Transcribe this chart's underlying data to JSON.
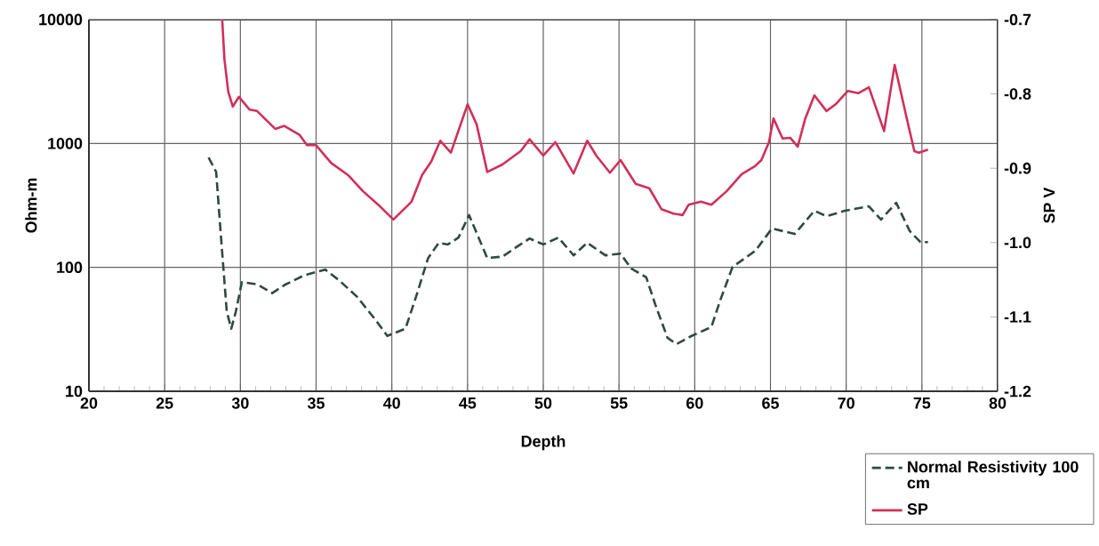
{
  "chart_data": {
    "type": "line",
    "xlabel": "Depth",
    "ylabel": "Ohm-m",
    "y2label": "SP  V",
    "xlim": [
      20,
      80
    ],
    "xticks": [
      20,
      25,
      30,
      35,
      40,
      45,
      50,
      55,
      60,
      65,
      70,
      75,
      80
    ],
    "ylim": [
      10,
      10000
    ],
    "yticks": [
      10,
      100,
      1000,
      10000
    ],
    "log": "y",
    "y2lim": [
      -1.2,
      -0.7
    ],
    "y2ticks": [
      {
        "value": -0.7,
        "label": "-0.7"
      },
      {
        "value": -0.8,
        "label": "-0.8"
      },
      {
        "value": -0.9,
        "label": "-0.9"
      },
      {
        "value": -1.0,
        "label": "-1.0"
      },
      {
        "value": -1.1,
        "label": "-1.1"
      },
      {
        "value": -1.2,
        "label": "-1.2"
      }
    ],
    "grid": true,
    "legend": "bottom right",
    "series": [
      {
        "name": "Normal Resistivity 100 cm",
        "color": "#2f4a3e",
        "line_style": "dashed",
        "x": [
          27.9,
          28.4,
          28.7,
          29.1,
          29.4,
          29.7,
          30.1,
          31.1,
          32.1,
          33.0,
          34.2,
          35.6,
          36.5,
          37.7,
          38.9,
          39.7,
          40.9,
          41.6,
          42.4,
          43.1,
          43.7,
          44.4,
          45.1,
          46.3,
          47.3,
          48.2,
          49.1,
          50.0,
          51.0,
          52.0,
          52.9,
          54.1,
          55.1,
          55.8,
          56.8,
          57.4,
          58.2,
          58.8,
          59.8,
          61.1,
          61.7,
          62.5,
          64.0,
          65.1,
          66.6,
          67.9,
          68.7,
          69.9,
          71.5,
          72.3,
          73.3,
          74.2,
          74.9,
          75.4
        ],
        "values": [
          770,
          590,
          190,
          44,
          32,
          44,
          76,
          73,
          62,
          73,
          86,
          96,
          79,
          58,
          38,
          28,
          32,
          58,
          119,
          158,
          153,
          174,
          264,
          119,
          122,
          145,
          171,
          153,
          174,
          125,
          158,
          125,
          129,
          98,
          83,
          50,
          27,
          24,
          28,
          33,
          55,
          101,
          136,
          206,
          186,
          286,
          259,
          286,
          311,
          243,
          332,
          196,
          160,
          160
        ]
      },
      {
        "name": "SP",
        "axis": "y2",
        "color": "#d0305a",
        "line_style": "solid",
        "x": [
          28.8,
          28.95,
          29.2,
          29.5,
          29.9,
          30.6,
          31.1,
          32.3,
          32.9,
          33.9,
          34.4,
          35.0,
          36.0,
          37.1,
          38.1,
          39.1,
          40.1,
          41.3,
          42.0,
          42.6,
          43.2,
          43.9,
          45.0,
          45.6,
          46.3,
          47.3,
          48.5,
          49.1,
          50.0,
          50.8,
          52.0,
          52.9,
          53.5,
          54.4,
          55.1,
          56.1,
          57.0,
          57.8,
          58.6,
          59.2,
          59.6,
          60.4,
          61.1,
          62.1,
          63.1,
          64.0,
          64.4,
          64.9,
          65.2,
          65.8,
          66.3,
          66.8,
          67.3,
          67.9,
          68.7,
          69.3,
          70.1,
          70.8,
          71.5,
          72.5,
          73.2,
          74.0,
          74.5,
          74.8,
          75.4
        ],
        "values": [
          -0.7,
          -0.754,
          -0.797,
          -0.817,
          -0.804,
          -0.821,
          -0.823,
          -0.847,
          -0.843,
          -0.855,
          -0.869,
          -0.869,
          -0.893,
          -0.909,
          -0.931,
          -0.949,
          -0.969,
          -0.945,
          -0.909,
          -0.891,
          -0.863,
          -0.879,
          -0.814,
          -0.841,
          -0.905,
          -0.895,
          -0.877,
          -0.861,
          -0.883,
          -0.865,
          -0.907,
          -0.863,
          -0.883,
          -0.906,
          -0.889,
          -0.921,
          -0.927,
          -0.955,
          -0.961,
          -0.963,
          -0.949,
          -0.945,
          -0.949,
          -0.931,
          -0.908,
          -0.897,
          -0.889,
          -0.865,
          -0.833,
          -0.86,
          -0.859,
          -0.871,
          -0.833,
          -0.802,
          -0.823,
          -0.814,
          -0.796,
          -0.799,
          -0.791,
          -0.85,
          -0.761,
          -0.833,
          -0.877,
          -0.879,
          -0.875
        ]
      }
    ]
  }
}
